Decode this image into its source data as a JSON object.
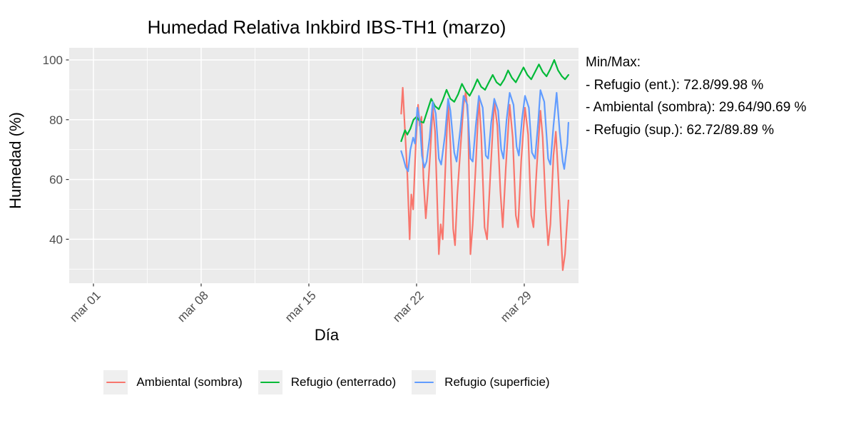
{
  "chart_data": {
    "type": "line",
    "title": "Humedad Relativa Inkbird IBS-TH1 (marzo)",
    "xlabel": "Día",
    "ylabel": "Humedad (%)",
    "x_axis": {
      "tick_labels": [
        "mar 01",
        "mar 08",
        "mar 15",
        "mar 22",
        "mar 29"
      ],
      "tick_days": [
        1,
        8,
        15,
        22,
        29
      ],
      "minor_grid_days": [
        4.5,
        11.5,
        18.5,
        25.5
      ],
      "range_days": [
        -0.6,
        32.5
      ]
    },
    "y_axis": {
      "tick_labels": [
        "40",
        "60",
        "80",
        "100"
      ],
      "ticks": [
        40,
        60,
        80,
        100
      ],
      "minor_grid": [
        30,
        50,
        70,
        90
      ],
      "range": [
        25.2,
        104.1
      ],
      "grid": true
    },
    "colors": {
      "panel_bg": "#EBEBEB",
      "grid": "#FFFFFF",
      "tick_text": "#4D4D4D",
      "tick_mark": "#333333"
    },
    "legend_position": "bottom",
    "series": [
      {
        "name": "Ambiental (sombra)",
        "color": "#F8766D",
        "min": 29.64,
        "max": 90.69,
        "points": [
          [
            21.0,
            82
          ],
          [
            21.1,
            90.7
          ],
          [
            21.25,
            76
          ],
          [
            21.4,
            62
          ],
          [
            21.55,
            40
          ],
          [
            21.66,
            55
          ],
          [
            21.78,
            50
          ],
          [
            21.95,
            72
          ],
          [
            22.1,
            85
          ],
          [
            22.2,
            78
          ],
          [
            22.32,
            81
          ],
          [
            22.45,
            60
          ],
          [
            22.6,
            47
          ],
          [
            22.72,
            55
          ],
          [
            22.9,
            70
          ],
          [
            23.05,
            84
          ],
          [
            23.2,
            76
          ],
          [
            23.45,
            35
          ],
          [
            23.57,
            45
          ],
          [
            23.7,
            40
          ],
          [
            23.9,
            68
          ],
          [
            24.05,
            86
          ],
          [
            24.2,
            72
          ],
          [
            24.38,
            43.5
          ],
          [
            24.5,
            38
          ],
          [
            24.65,
            55
          ],
          [
            24.85,
            70
          ],
          [
            25.05,
            85
          ],
          [
            25.2,
            89.5
          ],
          [
            25.35,
            80
          ],
          [
            25.5,
            35
          ],
          [
            25.65,
            45
          ],
          [
            25.85,
            65
          ],
          [
            26.05,
            87
          ],
          [
            26.2,
            75
          ],
          [
            26.42,
            44
          ],
          [
            26.58,
            40
          ],
          [
            26.8,
            62
          ],
          [
            27.05,
            86
          ],
          [
            27.25,
            78
          ],
          [
            27.45,
            56
          ],
          [
            27.6,
            44
          ],
          [
            27.8,
            64
          ],
          [
            28.05,
            85
          ],
          [
            28.25,
            74
          ],
          [
            28.45,
            48
          ],
          [
            28.6,
            44
          ],
          [
            28.8,
            66
          ],
          [
            29.05,
            84
          ],
          [
            29.25,
            75
          ],
          [
            29.45,
            48
          ],
          [
            29.6,
            44
          ],
          [
            29.8,
            63
          ],
          [
            30.05,
            83
          ],
          [
            30.2,
            74
          ],
          [
            30.4,
            50
          ],
          [
            30.55,
            38
          ],
          [
            30.7,
            45
          ],
          [
            30.9,
            68
          ],
          [
            31.05,
            76
          ],
          [
            31.2,
            62
          ],
          [
            31.5,
            29.64
          ],
          [
            31.65,
            35
          ],
          [
            31.87,
            53
          ]
        ]
      },
      {
        "name": "Refugio (enterrado)",
        "color": "#00BA38",
        "min": 72.8,
        "max": 99.98,
        "points": [
          [
            21.0,
            72.8
          ],
          [
            21.25,
            76.5
          ],
          [
            21.4,
            75
          ],
          [
            21.6,
            77
          ],
          [
            21.8,
            80
          ],
          [
            22.0,
            81
          ],
          [
            22.2,
            79.5
          ],
          [
            22.45,
            79
          ],
          [
            22.7,
            83
          ],
          [
            22.95,
            87
          ],
          [
            23.2,
            84.5
          ],
          [
            23.45,
            83.5
          ],
          [
            23.7,
            86.5
          ],
          [
            23.95,
            90
          ],
          [
            24.2,
            87
          ],
          [
            24.45,
            86
          ],
          [
            24.7,
            88.5
          ],
          [
            24.95,
            92
          ],
          [
            25.2,
            89.5
          ],
          [
            25.45,
            88
          ],
          [
            25.7,
            90.5
          ],
          [
            25.95,
            93.5
          ],
          [
            26.2,
            91
          ],
          [
            26.45,
            90
          ],
          [
            26.7,
            92.5
          ],
          [
            26.95,
            95
          ],
          [
            27.2,
            92.5
          ],
          [
            27.45,
            91.5
          ],
          [
            27.7,
            93.5
          ],
          [
            27.95,
            96.5
          ],
          [
            28.2,
            94
          ],
          [
            28.45,
            92.5
          ],
          [
            28.7,
            95
          ],
          [
            28.95,
            97.5
          ],
          [
            29.2,
            95
          ],
          [
            29.45,
            93.5
          ],
          [
            29.7,
            96
          ],
          [
            29.95,
            98.5
          ],
          [
            30.2,
            96
          ],
          [
            30.45,
            94.5
          ],
          [
            30.7,
            97
          ],
          [
            30.95,
            99.98
          ],
          [
            31.2,
            96.5
          ],
          [
            31.45,
            94.5
          ],
          [
            31.65,
            93.5
          ],
          [
            31.87,
            95
          ]
        ]
      },
      {
        "name": "Refugio (superficie)",
        "color": "#619CFF",
        "min": 62.72,
        "max": 89.89,
        "points": [
          [
            21.0,
            69.5
          ],
          [
            21.15,
            67
          ],
          [
            21.3,
            64
          ],
          [
            21.45,
            62.72
          ],
          [
            21.6,
            70
          ],
          [
            21.78,
            74
          ],
          [
            21.9,
            72
          ],
          [
            22.05,
            84
          ],
          [
            22.2,
            80
          ],
          [
            22.35,
            68
          ],
          [
            22.5,
            64
          ],
          [
            22.65,
            66
          ],
          [
            22.85,
            74
          ],
          [
            23.05,
            86
          ],
          [
            23.25,
            82
          ],
          [
            23.45,
            67
          ],
          [
            23.6,
            65
          ],
          [
            23.85,
            75
          ],
          [
            24.05,
            87
          ],
          [
            24.2,
            83
          ],
          [
            24.45,
            69
          ],
          [
            24.6,
            66
          ],
          [
            24.85,
            77
          ],
          [
            25.05,
            88
          ],
          [
            25.3,
            85
          ],
          [
            25.5,
            67
          ],
          [
            25.65,
            66
          ],
          [
            25.85,
            78
          ],
          [
            26.05,
            88
          ],
          [
            26.3,
            84
          ],
          [
            26.5,
            68
          ],
          [
            26.65,
            67
          ],
          [
            26.85,
            79
          ],
          [
            27.05,
            87
          ],
          [
            27.3,
            83
          ],
          [
            27.5,
            70
          ],
          [
            27.65,
            67
          ],
          [
            27.85,
            80
          ],
          [
            28.05,
            89
          ],
          [
            28.3,
            85
          ],
          [
            28.5,
            71
          ],
          [
            28.65,
            68
          ],
          [
            28.85,
            80
          ],
          [
            29.05,
            88
          ],
          [
            29.3,
            84
          ],
          [
            29.5,
            69
          ],
          [
            29.7,
            67
          ],
          [
            29.9,
            79
          ],
          [
            30.05,
            89.89
          ],
          [
            30.3,
            86
          ],
          [
            30.55,
            67
          ],
          [
            30.7,
            65
          ],
          [
            30.9,
            78
          ],
          [
            31.1,
            89
          ],
          [
            31.3,
            76
          ],
          [
            31.5,
            66
          ],
          [
            31.6,
            63.5
          ],
          [
            31.8,
            72
          ],
          [
            31.87,
            79
          ]
        ]
      }
    ]
  },
  "annotation": {
    "lines": [
      "Min/Max:",
      "- Refugio (ent.): 72.8/99.98 %",
      "- Ambiental (sombra): 29.64/90.69 %",
      "- Refugio (sup.): 62.72/89.89 %"
    ]
  }
}
